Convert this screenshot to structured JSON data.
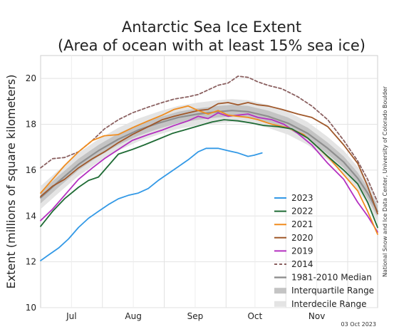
{
  "chart_data": {
    "type": "line",
    "title_line1": "Antarctic Sea Ice Extent",
    "title_line2": "(Area of ocean with at least 15% sea ice)",
    "ylabel": "Extent (millions of square kilometers)",
    "xlabel": "",
    "ylim": [
      10,
      21
    ],
    "y_ticks": [
      10,
      12,
      14,
      16,
      18,
      20
    ],
    "x_range_day_of_year": [
      166,
      335
    ],
    "x_ticks": [
      {
        "label": "Jul",
        "day": 197
      },
      {
        "label": "Aug",
        "day": 228
      },
      {
        "label": "Sep",
        "day": 259
      },
      {
        "label": "Oct",
        "day": 289
      },
      {
        "label": "Nov",
        "day": 320
      }
    ],
    "grid": true,
    "legend_position": "bottom-right",
    "credit": "National Snow and Ice Data Center, University of Colorado Boulder",
    "date_stamp": "03 Oct 2023",
    "colors": {
      "2023": "#3399e6",
      "2022": "#1f6b35",
      "2021": "#f08c1e",
      "2020": "#a0582a",
      "2019": "#b430c0",
      "2014": "#8a6060",
      "median": "#8f8f8f",
      "interquartile": "#c4c4c4",
      "interdecile": "#e4e4e4"
    },
    "series": [
      {
        "name": "2023",
        "style": "solid",
        "points": [
          [
            166,
            12.05
          ],
          [
            170,
            12.3
          ],
          [
            175,
            12.6
          ],
          [
            180,
            13.0
          ],
          [
            185,
            13.5
          ],
          [
            190,
            13.9
          ],
          [
            195,
            14.2
          ],
          [
            200,
            14.5
          ],
          [
            205,
            14.75
          ],
          [
            210,
            14.9
          ],
          [
            215,
            15.0
          ],
          [
            220,
            15.2
          ],
          [
            225,
            15.55
          ],
          [
            230,
            15.85
          ],
          [
            235,
            16.15
          ],
          [
            240,
            16.45
          ],
          [
            245,
            16.8
          ],
          [
            249,
            16.95
          ],
          [
            255,
            16.95
          ],
          [
            260,
            16.85
          ],
          [
            265,
            16.75
          ],
          [
            270,
            16.6
          ],
          [
            273,
            16.65
          ],
          [
            277,
            16.75
          ]
        ]
      },
      {
        "name": "2022",
        "style": "solid",
        "points": [
          [
            166,
            13.55
          ],
          [
            172,
            14.2
          ],
          [
            178,
            14.75
          ],
          [
            185,
            15.25
          ],
          [
            190,
            15.55
          ],
          [
            195,
            15.7
          ],
          [
            200,
            16.2
          ],
          [
            205,
            16.7
          ],
          [
            212,
            16.9
          ],
          [
            218,
            17.1
          ],
          [
            225,
            17.35
          ],
          [
            232,
            17.6
          ],
          [
            240,
            17.8
          ],
          [
            248,
            18.0
          ],
          [
            252,
            18.1
          ],
          [
            258,
            18.2
          ],
          [
            265,
            18.15
          ],
          [
            272,
            18.05
          ],
          [
            278,
            17.95
          ],
          [
            285,
            17.9
          ],
          [
            292,
            17.8
          ],
          [
            300,
            17.4
          ],
          [
            310,
            16.6
          ],
          [
            318,
            16.0
          ],
          [
            325,
            15.4
          ],
          [
            330,
            14.6
          ],
          [
            335,
            13.5
          ]
        ]
      },
      {
        "name": "2021",
        "style": "solid",
        "points": [
          [
            166,
            15.0
          ],
          [
            172,
            15.6
          ],
          [
            178,
            16.2
          ],
          [
            185,
            16.8
          ],
          [
            192,
            17.3
          ],
          [
            198,
            17.5
          ],
          [
            205,
            17.55
          ],
          [
            212,
            17.85
          ],
          [
            220,
            18.15
          ],
          [
            227,
            18.4
          ],
          [
            233,
            18.65
          ],
          [
            240,
            18.8
          ],
          [
            245,
            18.6
          ],
          [
            250,
            18.45
          ],
          [
            255,
            18.6
          ],
          [
            260,
            18.4
          ],
          [
            265,
            18.35
          ],
          [
            270,
            18.3
          ],
          [
            275,
            18.2
          ],
          [
            282,
            18.0
          ],
          [
            290,
            17.85
          ],
          [
            298,
            17.55
          ],
          [
            305,
            17.0
          ],
          [
            312,
            16.4
          ],
          [
            318,
            15.8
          ],
          [
            325,
            15.1
          ],
          [
            330,
            14.2
          ],
          [
            335,
            13.2
          ]
        ]
      },
      {
        "name": "2020",
        "style": "solid",
        "points": [
          [
            166,
            14.85
          ],
          [
            172,
            15.3
          ],
          [
            178,
            15.6
          ],
          [
            185,
            16.1
          ],
          [
            192,
            16.5
          ],
          [
            198,
            16.8
          ],
          [
            205,
            17.2
          ],
          [
            212,
            17.55
          ],
          [
            220,
            17.9
          ],
          [
            227,
            18.2
          ],
          [
            233,
            18.35
          ],
          [
            240,
            18.5
          ],
          [
            245,
            18.6
          ],
          [
            250,
            18.65
          ],
          [
            255,
            18.9
          ],
          [
            260,
            18.95
          ],
          [
            265,
            18.85
          ],
          [
            270,
            18.95
          ],
          [
            275,
            18.85
          ],
          [
            280,
            18.8
          ],
          [
            287,
            18.65
          ],
          [
            295,
            18.45
          ],
          [
            302,
            18.3
          ],
          [
            310,
            17.9
          ],
          [
            318,
            17.1
          ],
          [
            325,
            16.3
          ],
          [
            330,
            15.3
          ],
          [
            335,
            14.1
          ]
        ]
      },
      {
        "name": "2019",
        "style": "solid",
        "points": [
          [
            166,
            13.8
          ],
          [
            172,
            14.3
          ],
          [
            178,
            14.9
          ],
          [
            185,
            15.6
          ],
          [
            192,
            16.1
          ],
          [
            198,
            16.5
          ],
          [
            205,
            16.9
          ],
          [
            212,
            17.3
          ],
          [
            220,
            17.55
          ],
          [
            227,
            17.75
          ],
          [
            233,
            17.95
          ],
          [
            240,
            18.15
          ],
          [
            245,
            18.35
          ],
          [
            250,
            18.25
          ],
          [
            255,
            18.5
          ],
          [
            260,
            18.35
          ],
          [
            265,
            18.4
          ],
          [
            270,
            18.45
          ],
          [
            275,
            18.3
          ],
          [
            282,
            18.2
          ],
          [
            288,
            18.0
          ],
          [
            295,
            17.6
          ],
          [
            302,
            17.1
          ],
          [
            310,
            16.3
          ],
          [
            318,
            15.6
          ],
          [
            325,
            14.6
          ],
          [
            330,
            14.0
          ],
          [
            335,
            13.3
          ]
        ]
      },
      {
        "name": "2014",
        "style": "dashed",
        "points": [
          [
            166,
            16.1
          ],
          [
            172,
            16.5
          ],
          [
            178,
            16.55
          ],
          [
            185,
            16.8
          ],
          [
            192,
            17.3
          ],
          [
            198,
            17.8
          ],
          [
            205,
            18.2
          ],
          [
            212,
            18.5
          ],
          [
            220,
            18.75
          ],
          [
            227,
            18.95
          ],
          [
            233,
            19.1
          ],
          [
            240,
            19.2
          ],
          [
            245,
            19.3
          ],
          [
            250,
            19.5
          ],
          [
            255,
            19.7
          ],
          [
            260,
            19.8
          ],
          [
            265,
            20.1
          ],
          [
            270,
            20.05
          ],
          [
            275,
            19.85
          ],
          [
            280,
            19.7
          ],
          [
            287,
            19.55
          ],
          [
            295,
            19.2
          ],
          [
            302,
            18.8
          ],
          [
            310,
            18.2
          ],
          [
            318,
            17.3
          ],
          [
            325,
            16.4
          ],
          [
            330,
            15.6
          ],
          [
            335,
            14.6
          ]
        ]
      },
      {
        "name": "1981-2010 Median",
        "style": "median",
        "points": [
          [
            166,
            14.8
          ],
          [
            175,
            15.5
          ],
          [
            185,
            16.25
          ],
          [
            195,
            16.85
          ],
          [
            205,
            17.35
          ],
          [
            215,
            17.75
          ],
          [
            225,
            18.05
          ],
          [
            235,
            18.3
          ],
          [
            245,
            18.45
          ],
          [
            255,
            18.55
          ],
          [
            262,
            18.6
          ],
          [
            270,
            18.55
          ],
          [
            280,
            18.35
          ],
          [
            290,
            18.05
          ],
          [
            300,
            17.6
          ],
          [
            310,
            16.95
          ],
          [
            318,
            16.35
          ],
          [
            325,
            15.65
          ],
          [
            330,
            15.0
          ],
          [
            335,
            14.2
          ]
        ]
      }
    ],
    "bands": [
      {
        "name": "Interdecile Range",
        "upper": [
          [
            166,
            15.3
          ],
          [
            175,
            16.0
          ],
          [
            185,
            16.75
          ],
          [
            195,
            17.35
          ],
          [
            205,
            17.85
          ],
          [
            215,
            18.25
          ],
          [
            225,
            18.55
          ],
          [
            235,
            18.8
          ],
          [
            245,
            18.95
          ],
          [
            255,
            19.05
          ],
          [
            262,
            19.1
          ],
          [
            270,
            19.05
          ],
          [
            280,
            18.85
          ],
          [
            290,
            18.55
          ],
          [
            300,
            18.1
          ],
          [
            310,
            17.45
          ],
          [
            318,
            16.85
          ],
          [
            325,
            16.15
          ],
          [
            330,
            15.5
          ],
          [
            335,
            14.7
          ]
        ],
        "lower": [
          [
            166,
            14.3
          ],
          [
            175,
            15.0
          ],
          [
            185,
            15.75
          ],
          [
            195,
            16.35
          ],
          [
            205,
            16.85
          ],
          [
            215,
            17.25
          ],
          [
            225,
            17.55
          ],
          [
            235,
            17.8
          ],
          [
            245,
            17.95
          ],
          [
            255,
            18.05
          ],
          [
            262,
            18.1
          ],
          [
            270,
            18.05
          ],
          [
            280,
            17.85
          ],
          [
            290,
            17.55
          ],
          [
            300,
            17.1
          ],
          [
            310,
            16.45
          ],
          [
            318,
            15.85
          ],
          [
            325,
            15.15
          ],
          [
            330,
            14.5
          ],
          [
            335,
            13.7
          ]
        ]
      },
      {
        "name": "Interquartile Range",
        "upper": [
          [
            166,
            15.05
          ],
          [
            175,
            15.75
          ],
          [
            185,
            16.5
          ],
          [
            195,
            17.1
          ],
          [
            205,
            17.6
          ],
          [
            215,
            18.0
          ],
          [
            225,
            18.3
          ],
          [
            235,
            18.55
          ],
          [
            245,
            18.7
          ],
          [
            255,
            18.8
          ],
          [
            262,
            18.85
          ],
          [
            270,
            18.8
          ],
          [
            280,
            18.6
          ],
          [
            290,
            18.3
          ],
          [
            300,
            17.85
          ],
          [
            310,
            17.2
          ],
          [
            318,
            16.6
          ],
          [
            325,
            15.9
          ],
          [
            330,
            15.25
          ],
          [
            335,
            14.45
          ]
        ],
        "lower": [
          [
            166,
            14.55
          ],
          [
            175,
            15.25
          ],
          [
            185,
            16.0
          ],
          [
            195,
            16.6
          ],
          [
            205,
            17.1
          ],
          [
            215,
            17.5
          ],
          [
            225,
            17.8
          ],
          [
            235,
            18.05
          ],
          [
            245,
            18.2
          ],
          [
            255,
            18.3
          ],
          [
            262,
            18.35
          ],
          [
            270,
            18.3
          ],
          [
            280,
            18.1
          ],
          [
            290,
            17.8
          ],
          [
            300,
            17.35
          ],
          [
            310,
            16.7
          ],
          [
            318,
            16.1
          ],
          [
            325,
            15.4
          ],
          [
            330,
            14.75
          ],
          [
            335,
            13.95
          ]
        ]
      }
    ],
    "legend": [
      {
        "label": "2023",
        "key": "2023",
        "style": "solid"
      },
      {
        "label": "2022",
        "key": "2022",
        "style": "solid"
      },
      {
        "label": "2021",
        "key": "2021",
        "style": "solid"
      },
      {
        "label": "2020",
        "key": "2020",
        "style": "solid"
      },
      {
        "label": "2019",
        "key": "2019",
        "style": "solid"
      },
      {
        "label": "2014",
        "key": "2014",
        "style": "dashed"
      },
      {
        "label": "1981-2010 Median",
        "key": "median",
        "style": "median"
      },
      {
        "label": "Interquartile Range",
        "key": "interquartile",
        "style": "band"
      },
      {
        "label": "Interdecile Range",
        "key": "interdecile",
        "style": "band"
      }
    ]
  }
}
